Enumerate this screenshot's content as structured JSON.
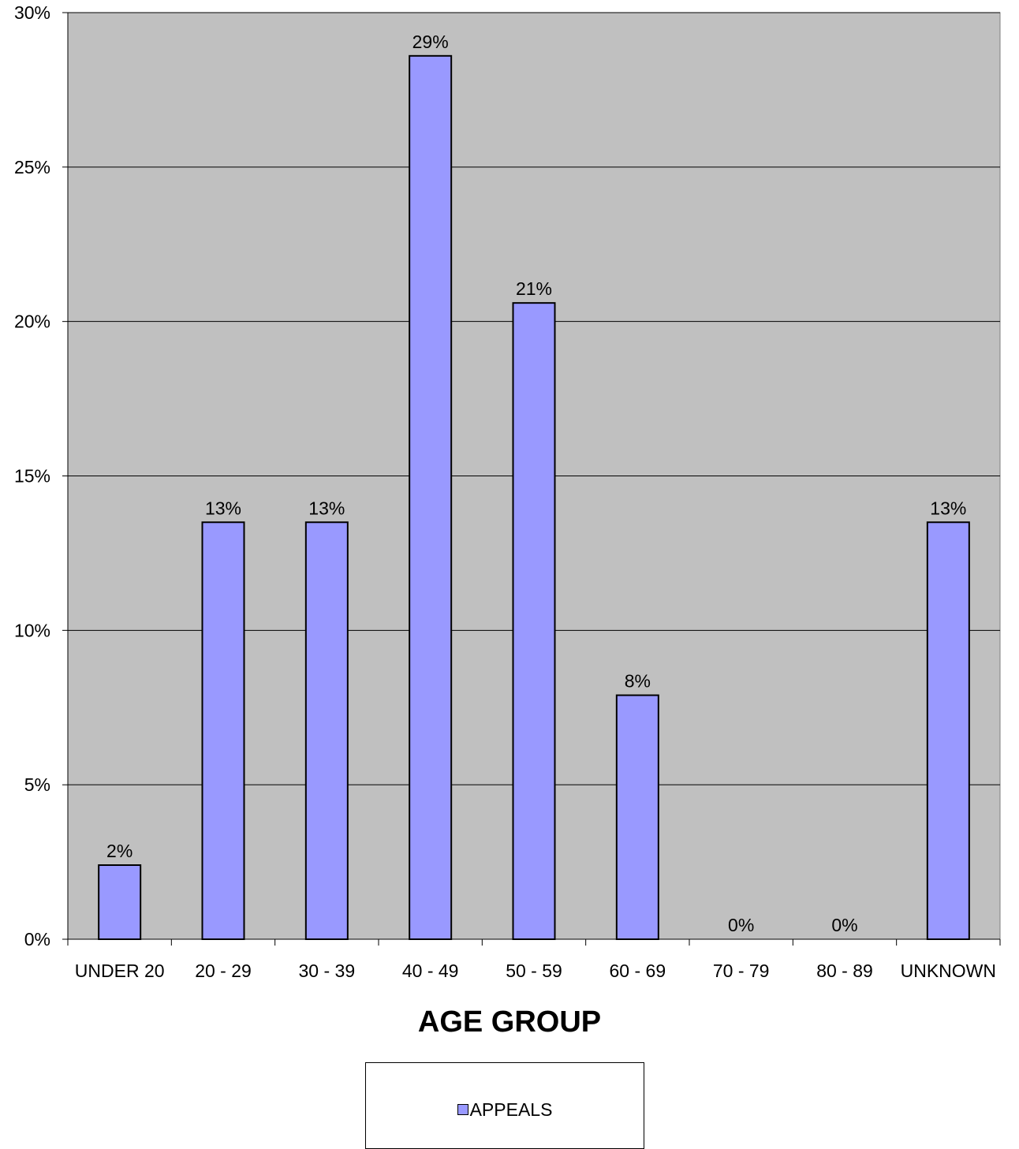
{
  "chart_data": {
    "type": "bar",
    "xlabel": "AGE GROUP",
    "ylabel": "",
    "ylim": [
      0,
      30
    ],
    "yticks": [
      "0%",
      "5%",
      "10%",
      "15%",
      "20%",
      "25%",
      "30%"
    ],
    "grid": true,
    "legend_position": "bottom",
    "plot_background": "#c0c0c0",
    "categories": [
      "UNDER 20",
      "20 - 29",
      "30 - 39",
      "40 - 49",
      "50 - 59",
      "60 - 69",
      "70 - 79",
      "80 - 89",
      "UNKNOWN"
    ],
    "series": [
      {
        "name": "APPEALS",
        "color": "#9999ff",
        "values": [
          2.4,
          13.5,
          13.5,
          28.6,
          20.6,
          7.9,
          0,
          0,
          13.5
        ],
        "data_labels": [
          "2%",
          "13%",
          "13%",
          "29%",
          "21%",
          "8%",
          "0%",
          "0%",
          "13%"
        ]
      }
    ]
  }
}
